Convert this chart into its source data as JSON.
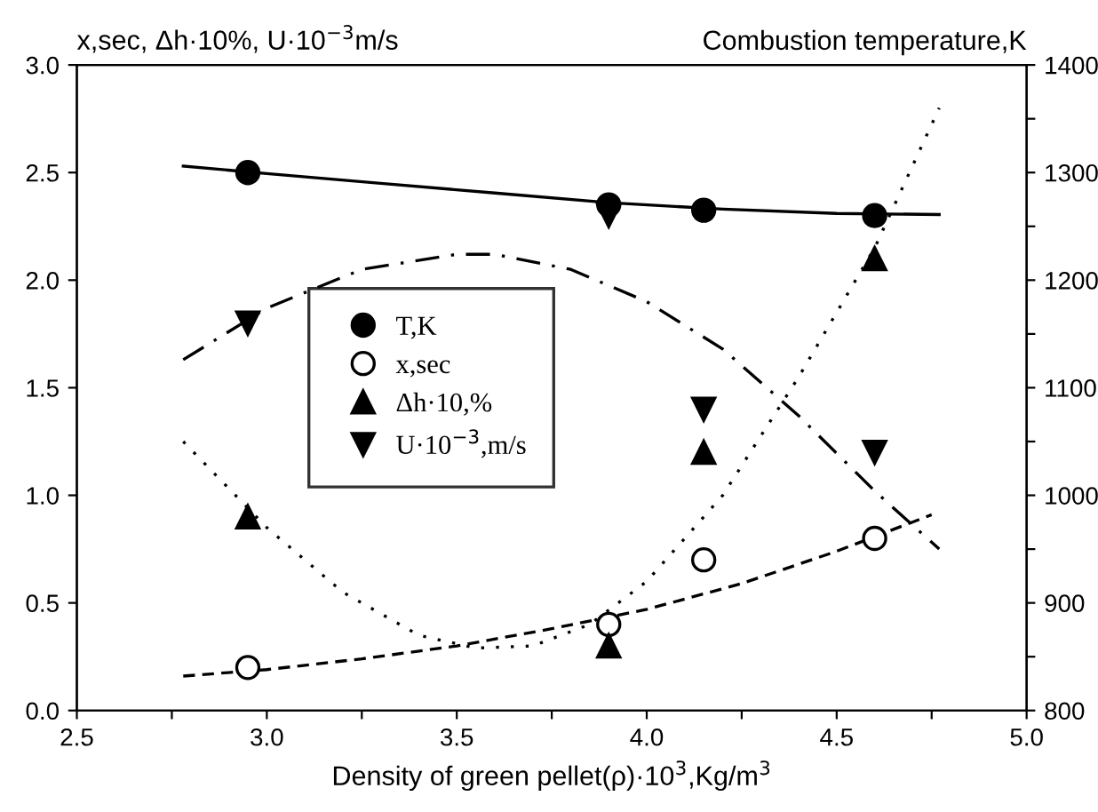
{
  "chart_data": {
    "type": "scatter",
    "ylabel": "x,sec, Δh·10%, U·10$^{−3}$m/s",
    "y2label": "Combustion temperature,K",
    "xlabel": "Density of green pellet(ρ)·10$^{3}$,Kg/m$^{3}$",
    "xlim": [
      2.5,
      5.0
    ],
    "xticks": [
      {
        "value": 2.5,
        "label": "2.5"
      },
      {
        "value": 2.75,
        "label": null
      },
      {
        "value": 3.0,
        "label": "3.0"
      },
      {
        "value": 3.25,
        "label": null
      },
      {
        "value": 3.5,
        "label": "3.5"
      },
      {
        "value": 3.75,
        "label": null
      },
      {
        "value": 4.0,
        "label": "4.0"
      },
      {
        "value": 4.25,
        "label": null
      },
      {
        "value": 4.5,
        "label": "4.5"
      },
      {
        "value": 4.75,
        "label": null
      },
      {
        "value": 5.0,
        "label": "5.0"
      }
    ],
    "ylim": [
      0,
      3.0
    ],
    "yticks": [
      {
        "value": 0,
        "label": "0.0"
      },
      {
        "value": 0.5,
        "label": "0.5"
      },
      {
        "value": 1.0,
        "label": "1.0"
      },
      {
        "value": 1.5,
        "label": "1.5"
      },
      {
        "value": 2.0,
        "label": "2.0"
      },
      {
        "value": 2.5,
        "label": "2.5"
      },
      {
        "value": 3.0,
        "label": "3.0"
      }
    ],
    "y2lim": [
      800,
      1400
    ],
    "y2ticks": [
      800,
      {
        "value": 850,
        "label": null
      },
      900,
      {
        "value": 950,
        "label": null
      },
      1000,
      {
        "value": 1050,
        "label": null
      },
      1100,
      {
        "value": 1150,
        "label": null
      },
      1200,
      {
        "value": 1250,
        "label": null
      },
      1300,
      {
        "value": 1350,
        "label": null
      },
      1400
    ],
    "grid": false,
    "legend": "center left",
    "series": [
      {
        "name": "T,K",
        "type": "scatter",
        "axis": "y2",
        "marker": "circle",
        "color": "#000000",
        "x": [
          2.95,
          3.9,
          4.15,
          4.6
        ],
        "values": [
          1300,
          1270,
          1265,
          1260
        ]
      },
      {
        "name": "x,sec",
        "type": "scatter",
        "marker": "circle",
        "color": "#ffffff",
        "x": [
          2.95,
          3.9,
          4.15,
          4.6
        ],
        "values": [
          0.2,
          0.4,
          0.7,
          0.8
        ]
      },
      {
        "name": "Δh·10,%",
        "type": "scatter",
        "marker": "triangle",
        "color": "#000000",
        "x": [
          2.95,
          3.9,
          4.15,
          4.6
        ],
        "values": [
          0.9,
          0.3,
          1.2,
          2.1
        ]
      },
      {
        "name": "U·10$^{−3}$,m/s",
        "type": "scatter",
        "marker": "triangle_down",
        "color": "#000000",
        "x": [
          2.95,
          3.9,
          4.15,
          4.6
        ],
        "values": [
          1.8,
          2.3,
          1.4,
          1.2
        ]
      },
      {
        "type": "line",
        "axis": "y2",
        "line_style": "solid",
        "marker": "none",
        "color": "#000000",
        "x": [
          2.78,
          3.0,
          3.3,
          3.6,
          3.9,
          4.2,
          4.5,
          4.77
        ],
        "values": [
          1306,
          1299,
          1290,
          1281,
          1272,
          1266,
          1262,
          1261
        ]
      },
      {
        "type": "line",
        "line_style": "dashed",
        "marker": "none",
        "color": "#000000",
        "x": [
          2.78,
          3.0,
          3.25,
          3.5,
          3.75,
          4.0,
          4.25,
          4.5,
          4.75
        ],
        "values": [
          0.16,
          0.19,
          0.24,
          0.3,
          0.38,
          0.47,
          0.59,
          0.74,
          0.91
        ]
      },
      {
        "type": "line",
        "line_style": "dotted",
        "marker": "none",
        "color": "#000000",
        "x": [
          2.78,
          3.0,
          3.2,
          3.4,
          3.55,
          3.7,
          3.85,
          4.0,
          4.2,
          4.4,
          4.6,
          4.77
        ],
        "values": [
          1.25,
          0.85,
          0.55,
          0.35,
          0.29,
          0.3,
          0.4,
          0.6,
          1.0,
          1.55,
          2.15,
          2.8
        ]
      },
      {
        "type": "line",
        "line_style": "dashdot",
        "marker": "none",
        "color": "#000000",
        "x": [
          2.78,
          3.0,
          3.25,
          3.5,
          3.6,
          3.8,
          4.0,
          4.2,
          4.4,
          4.6,
          4.77
        ],
        "values": [
          1.63,
          1.87,
          2.05,
          2.12,
          2.12,
          2.05,
          1.9,
          1.68,
          1.37,
          1.02,
          0.75
        ]
      }
    ]
  }
}
